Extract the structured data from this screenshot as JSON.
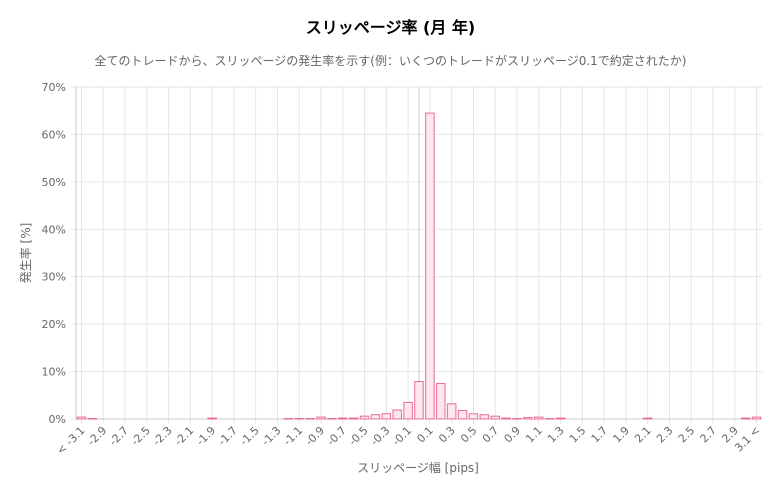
{
  "title": "スリッページ率 (月 年)",
  "subtitle": "全てのトレードから、スリッページの発生率を示す(例：いくつのトレードがスリッページ0.1で約定されたか)",
  "chart_data": {
    "type": "bar",
    "xlabel": "スリッページ幅 [pips]",
    "ylabel": "発生率 [%]",
    "ylim": [
      0,
      70
    ],
    "yticks": [
      "0%",
      "10%",
      "20%",
      "30%",
      "40%",
      "50%",
      "60%",
      "70%"
    ],
    "grid": true,
    "legend": "none",
    "categories": [
      "< -3.1",
      "-3.0",
      "-2.9",
      "-2.8",
      "-2.7",
      "-2.6",
      "-2.5",
      "-2.4",
      "-2.3",
      "-2.2",
      "-2.1",
      "-2.0",
      "-1.9",
      "-1.8",
      "-1.7",
      "-1.6",
      "-1.5",
      "-1.4",
      "-1.3",
      "-1.2",
      "-1.1",
      "-1.0",
      "-0.9",
      "-0.8",
      "-0.7",
      "-0.6",
      "-0.5",
      "-0.4",
      "-0.3",
      "-0.2",
      "-0.1",
      "0.0",
      "0.1",
      "0.2",
      "0.3",
      "0.4",
      "0.5",
      "0.6",
      "0.7",
      "0.8",
      "0.9",
      "1.0",
      "1.1",
      "1.2",
      "1.3",
      "1.4",
      "1.5",
      "1.6",
      "1.7",
      "1.8",
      "1.9",
      "2.0",
      "2.1",
      "2.2",
      "2.3",
      "2.4",
      "2.5",
      "2.6",
      "2.7",
      "2.8",
      "2.9",
      "3.0",
      "3.1 <"
    ],
    "tick_labels": [
      "< -3.1",
      "-2.9",
      "-2.7",
      "-2.5",
      "-2.3",
      "-2.1",
      "-1.9",
      "-1.7",
      "-1.5",
      "-1.3",
      "-1.1",
      "-0.9",
      "-0.7",
      "-0.5",
      "-0.3",
      "-0.1",
      "0.1",
      "0.3",
      "0.5",
      "0.7",
      "0.9",
      "1.1",
      "1.3",
      "1.5",
      "1.7",
      "1.9",
      "2.1",
      "2.3",
      "2.5",
      "2.7",
      "2.9",
      "3.1 <"
    ],
    "values": [
      0.4,
      0.1,
      0,
      0,
      0,
      0,
      0,
      0,
      0,
      0,
      0,
      0,
      0.2,
      0,
      0,
      0,
      0,
      0,
      0,
      0.1,
      0.1,
      0.1,
      0.4,
      0.1,
      0.2,
      0.2,
      0.6,
      0.9,
      1.1,
      1.9,
      3.5,
      7.9,
      64.5,
      7.5,
      3.2,
      1.8,
      1.1,
      0.9,
      0.6,
      0.2,
      0.1,
      0.3,
      0.4,
      0.1,
      0.2,
      0,
      0,
      0,
      0,
      0,
      0,
      0,
      0.2,
      0,
      0,
      0,
      0,
      0,
      0,
      0,
      0,
      0.2,
      0.4
    ],
    "colors": {
      "bar_fill": "#fde6ee",
      "bar_stroke": "#e96d92",
      "grid": "#e6e6e6",
      "axis": "#c8c8c8"
    }
  }
}
